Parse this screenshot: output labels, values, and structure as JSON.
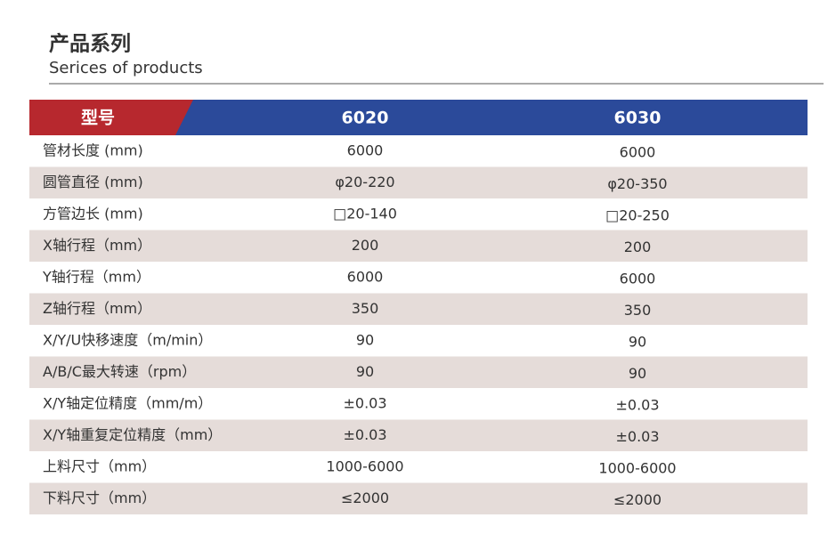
{
  "header": {
    "title": "产品系列",
    "subtitle": "Serices of products"
  },
  "table": {
    "columns": [
      "型号",
      "6020",
      "6030"
    ],
    "rows": [
      [
        "管材长度 (mm)",
        "6000",
        "6000"
      ],
      [
        "圆管直径 (mm)",
        "φ20-220",
        "φ20-350"
      ],
      [
        "方管边长 (mm)",
        "□20-140",
        "□20-250"
      ],
      [
        "X轴行程（mm）",
        "200",
        "200"
      ],
      [
        "Y轴行程（mm）",
        "6000",
        "6000"
      ],
      [
        "Z轴行程（mm）",
        "350",
        "350"
      ],
      [
        "X/Y/U快移速度（m/min）",
        "90",
        "90"
      ],
      [
        "A/B/C最大转速（rpm）",
        "90",
        "90"
      ],
      [
        "X/Y轴定位精度（mm/m）",
        "±0.03",
        "±0.03"
      ],
      [
        "X/Y轴重复定位精度（mm）",
        "±0.03",
        "±0.03"
      ],
      [
        "上料尺寸（mm）",
        "1000-6000",
        "1000-6000"
      ],
      [
        "下料尺寸（mm）",
        "≤2000",
        "≤2000"
      ]
    ]
  }
}
